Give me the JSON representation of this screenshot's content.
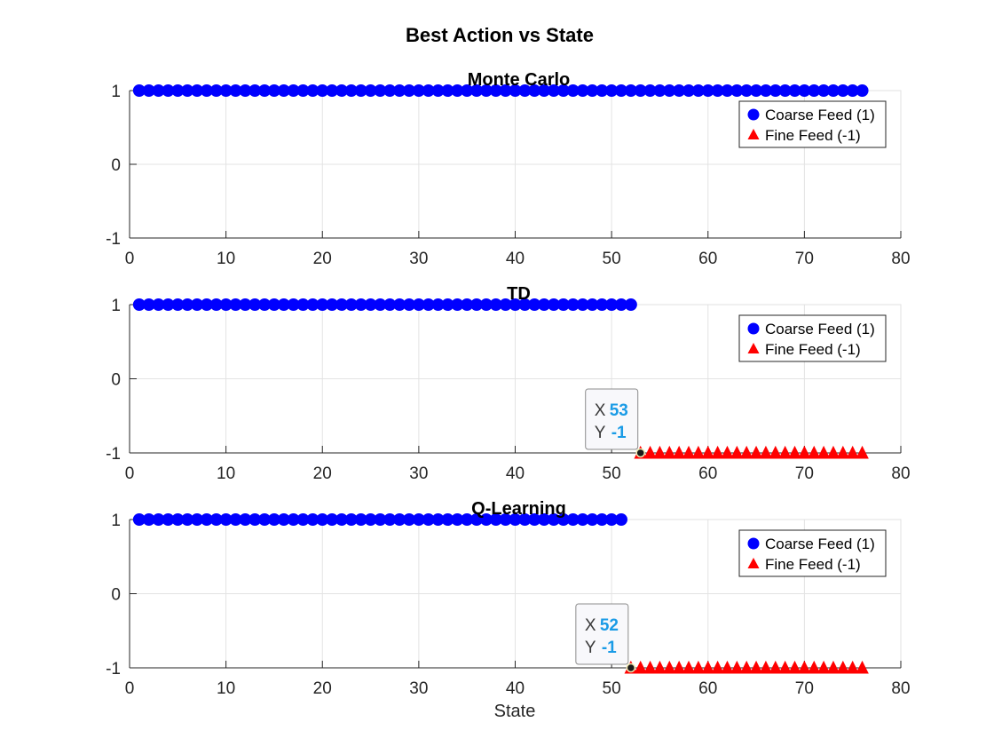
{
  "figure": {
    "title": "Best Action vs State",
    "xlabel": "State"
  },
  "legend": {
    "items": [
      "Coarse Feed (1)",
      "Fine Feed (-1)"
    ]
  },
  "chart_data": [
    {
      "type": "scatter",
      "title": "Monte Carlo",
      "xlabel": "",
      "ylabel": "",
      "xlim": [
        0,
        80
      ],
      "ylim": [
        -1,
        1
      ],
      "xticks": [
        0,
        10,
        20,
        30,
        40,
        50,
        60,
        70,
        80
      ],
      "yticks": [
        -1,
        0,
        1
      ],
      "grid": true,
      "legend_position": "top-right",
      "series": [
        {
          "name": "Coarse Feed (1)",
          "marker": "circle",
          "color": "#0000ff",
          "x_range": [
            1,
            76
          ],
          "y": 1
        },
        {
          "name": "Fine Feed (-1)",
          "marker": "triangle",
          "color": "#ff0000",
          "x_range": null,
          "y": -1
        }
      ],
      "datatip": null
    },
    {
      "type": "scatter",
      "title": "TD",
      "xlabel": "",
      "ylabel": "",
      "xlim": [
        0,
        80
      ],
      "ylim": [
        -1,
        1
      ],
      "xticks": [
        0,
        10,
        20,
        30,
        40,
        50,
        60,
        70,
        80
      ],
      "yticks": [
        -1,
        0,
        1
      ],
      "grid": true,
      "legend_position": "top-right",
      "series": [
        {
          "name": "Coarse Feed (1)",
          "marker": "circle",
          "color": "#0000ff",
          "x_range": [
            1,
            52
          ],
          "y": 1
        },
        {
          "name": "Fine Feed (-1)",
          "marker": "triangle",
          "color": "#ff0000",
          "x_range": [
            53,
            76
          ],
          "y": -1
        }
      ],
      "datatip": {
        "x": 53,
        "y": -1,
        "x_label": "X",
        "y_label": "Y",
        "x_text": "53",
        "y_text": "-1"
      }
    },
    {
      "type": "scatter",
      "title": "Q-Learning",
      "xlabel": "State",
      "ylabel": "",
      "xlim": [
        0,
        80
      ],
      "ylim": [
        -1,
        1
      ],
      "xticks": [
        0,
        10,
        20,
        30,
        40,
        50,
        60,
        70,
        80
      ],
      "yticks": [
        -1,
        0,
        1
      ],
      "grid": true,
      "legend_position": "top-right",
      "series": [
        {
          "name": "Coarse Feed (1)",
          "marker": "circle",
          "color": "#0000ff",
          "x_range": [
            1,
            51
          ],
          "y": 1
        },
        {
          "name": "Fine Feed (-1)",
          "marker": "triangle",
          "color": "#ff0000",
          "x_range": [
            52,
            76
          ],
          "y": -1
        }
      ],
      "datatip": {
        "x": 52,
        "y": -1,
        "x_label": "X",
        "y_label": "Y",
        "x_text": "52",
        "y_text": "-1"
      }
    }
  ]
}
